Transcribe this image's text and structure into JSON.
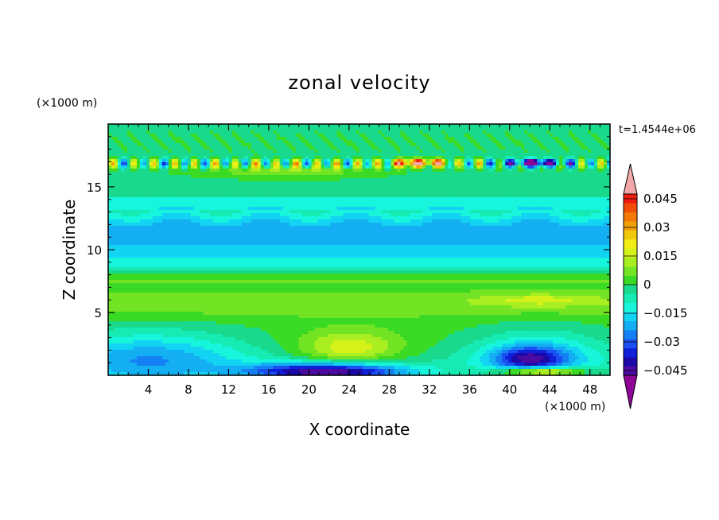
{
  "chart_data": {
    "type": "heatmap",
    "title": "zonal velocity",
    "xlabel": "X coordinate",
    "ylabel": "Z coordinate",
    "x_unit": "(×1000 m)",
    "y_unit": "(×1000 m)",
    "time_label": "t=1.4544e+06",
    "xlim": [
      0,
      50
    ],
    "ylim": [
      0,
      20
    ],
    "x_ticks": [
      4,
      8,
      12,
      16,
      20,
      24,
      28,
      32,
      36,
      40,
      44,
      48
    ],
    "y_ticks": [
      5,
      10,
      15
    ],
    "x_tick_labels": [
      "4",
      "8",
      "12",
      "16",
      "20",
      "24",
      "28",
      "32",
      "36",
      "40",
      "44",
      "48"
    ],
    "y_tick_labels": [
      "5",
      "10",
      "15"
    ],
    "colorbar": {
      "levels": [
        -0.0525,
        -0.0475,
        -0.0425,
        -0.0375,
        -0.0325,
        -0.0275,
        -0.0225,
        -0.0175,
        -0.0125,
        -0.0075,
        -0.0025,
        0.0025,
        0.0075,
        0.0125,
        0.0175,
        0.0225,
        0.0275,
        0.0325,
        0.0375,
        0.0425,
        0.0475,
        0.0525
      ],
      "colors": [
        "#8e0596",
        "#4b0ba0",
        "#1c09a8",
        "#1020d8",
        "#1a4ff2",
        "#1580f4",
        "#14aef2",
        "#12d4f2",
        "#17f6dc",
        "#17ebb4",
        "#19d98c",
        "#3ada24",
        "#72e424",
        "#a8ee20",
        "#d4f21a",
        "#f2ee14",
        "#f2c80c",
        "#f2a008",
        "#f27808",
        "#f24c08",
        "#f01c12",
        "#f2a8a8"
      ],
      "label_values": [
        0.045,
        0.03,
        0.015,
        0,
        -0.015,
        -0.03,
        -0.045
      ],
      "labels": [
        "0.045",
        "0.03",
        "0.015",
        "0",
        "−0.015",
        "−0.03",
        "−0.045"
      ]
    },
    "field_description": "contour-filled zonal velocity field over x (0–50 km) and z (0–20 km); near-zero greens aloft, negative cyan/blue band near z≈10–13, strong negative core near x≈40–44 at z≈1, positive yellow near x≈24 at z≈2, alternating extremes at z≈17"
  }
}
